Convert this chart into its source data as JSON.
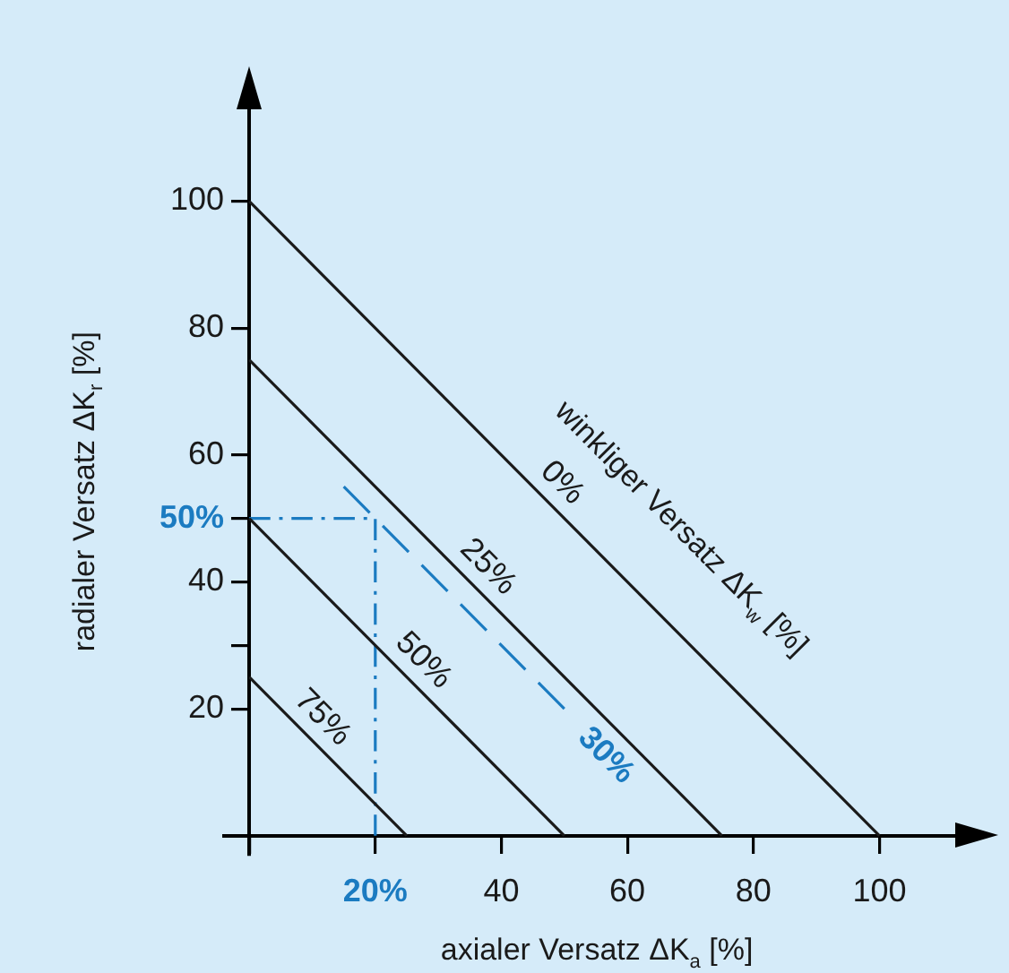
{
  "chart_data": {
    "type": "line",
    "xlabel": "axialer Versatz ΔK$_{a}$ [%]",
    "ylabel": "radialer Versatz ΔK$_{r}$ [%]",
    "legend_title": "winkliger Versatz ΔK$_{w}$ [%]",
    "xlim": [
      -4,
      116
    ],
    "ylim": [
      -3,
      119
    ],
    "xticks": [
      {
        "value": 0,
        "label": null
      },
      {
        "value": 20,
        "label": "20%"
      },
      40,
      60,
      80,
      100
    ],
    "yticks": [
      {
        "value": 0,
        "label": null
      },
      20,
      {
        "value": 30,
        "label": null
      },
      40,
      {
        "value": 50,
        "label": "50%"
      },
      60,
      80,
      100
    ],
    "grid": false,
    "marker": "none",
    "series": [
      {
        "name": "0%",
        "color": "#1a1a1a",
        "x": [
          0,
          100
        ],
        "values": [
          100,
          0
        ],
        "line_style": "solid"
      },
      {
        "name": "25%",
        "color": "#1a1a1a",
        "x": [
          0,
          75
        ],
        "values": [
          75,
          0
        ],
        "line_style": "solid"
      },
      {
        "name": "50%",
        "color": "#1a1a1a",
        "x": [
          0,
          50
        ],
        "values": [
          50,
          0
        ],
        "line_style": "solid"
      },
      {
        "name": "75%",
        "color": "#1a1a1a",
        "x": [
          0,
          25
        ],
        "values": [
          25,
          0
        ],
        "line_style": "solid"
      },
      {
        "name": "30%",
        "color": "#1b7bc1",
        "x": [
          15,
          50
        ],
        "values": [
          55,
          20
        ],
        "line_style": "dashed"
      },
      {
        "color": "#1b7bc1",
        "x": [
          0,
          20,
          20
        ],
        "values": [
          50,
          50,
          0
        ],
        "line_style": "dotted"
      }
    ]
  }
}
